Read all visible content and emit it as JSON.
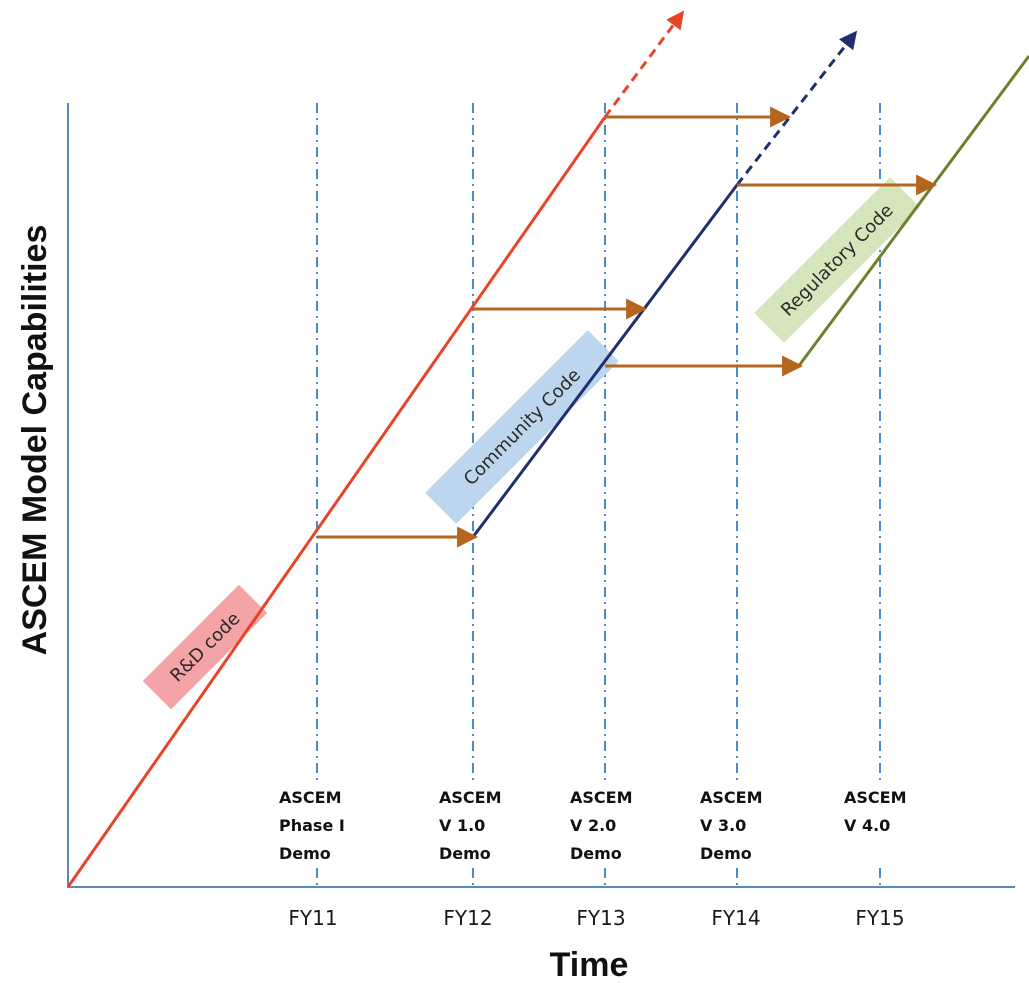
{
  "axes": {
    "y_label": "ASCEM Model Capabilities",
    "x_label": "Time"
  },
  "fiscal_years": [
    "FY11",
    "FY12",
    "FY13",
    "FY14",
    "FY15"
  ],
  "milestones": [
    [
      "ASCEM",
      "Phase I",
      "Demo"
    ],
    [
      "ASCEM",
      "V 1.0",
      "Demo"
    ],
    [
      "ASCEM",
      "V 2.0",
      "Demo"
    ],
    [
      "ASCEM",
      "V 3.0",
      "Demo"
    ],
    [
      "ASCEM",
      "V 4.0"
    ]
  ],
  "tracks": {
    "rd": {
      "label": "R&D code",
      "color": "#e8442a",
      "band_color": "#f4a3a6"
    },
    "community": {
      "label": "Community  Code",
      "color": "#1f2f6e",
      "band_color": "#bcd6ee"
    },
    "regulatory": {
      "label": "Regulatory Code",
      "color": "#6f7f2c",
      "band_color": "#d6e6bc"
    }
  },
  "colors": {
    "axis": "#5b86c0",
    "gridline": "#4a8ad1",
    "arrow": "#b5651d"
  }
}
